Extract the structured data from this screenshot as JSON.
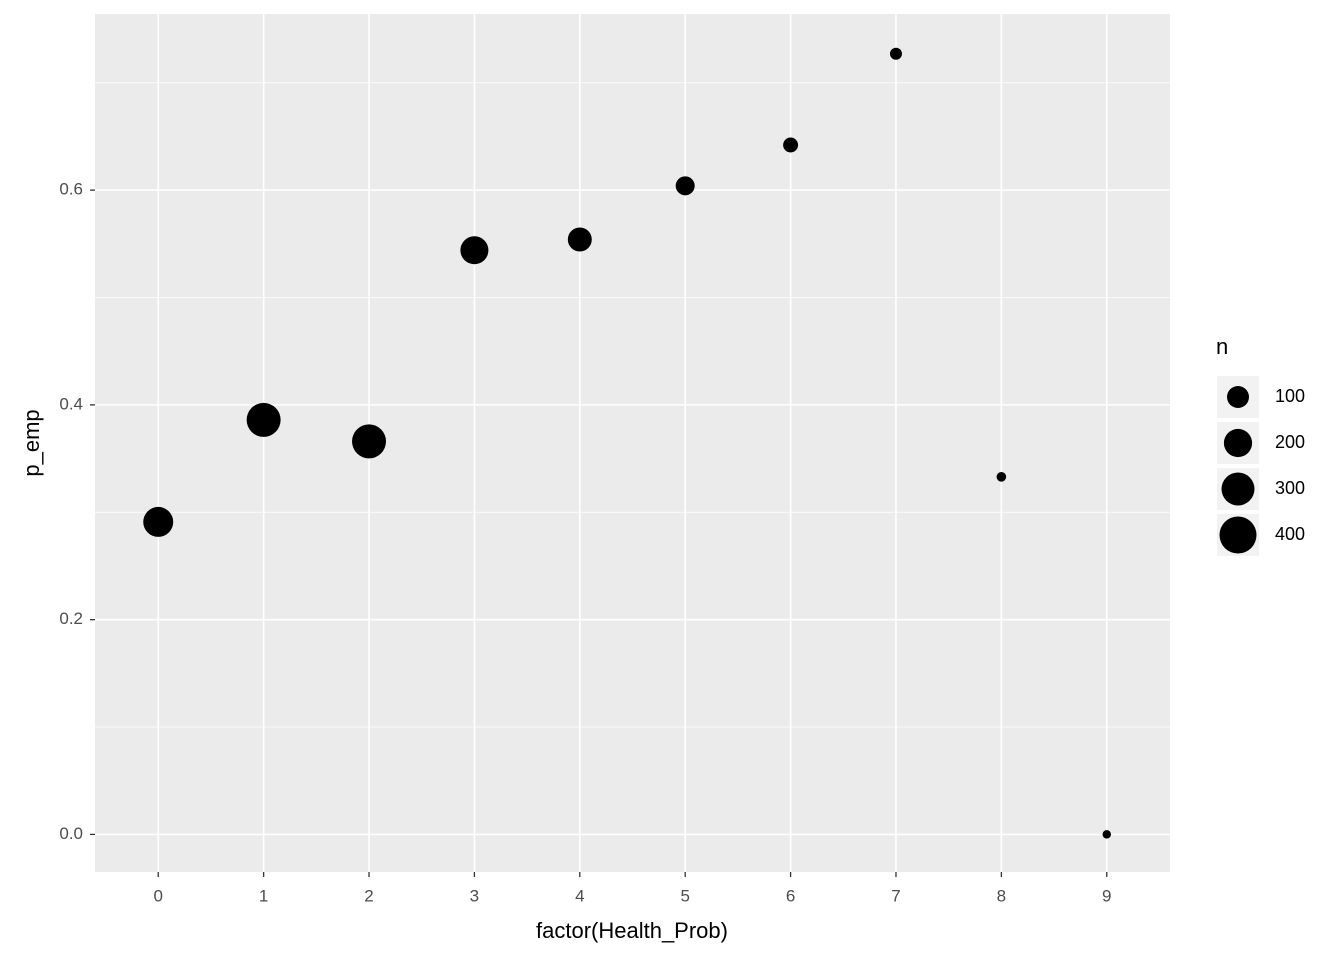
{
  "chart_data": {
    "type": "scatter",
    "x_label": "factor(Health_Prob)",
    "y_label": "p_emp",
    "categories": [
      "0",
      "1",
      "2",
      "3",
      "4",
      "5",
      "6",
      "7",
      "8",
      "9"
    ],
    "values": [
      0.291,
      0.386,
      0.366,
      0.544,
      0.554,
      0.604,
      0.642,
      0.727,
      0.333,
      0.0
    ],
    "sizes": [
      235,
      324,
      324,
      196,
      128,
      64,
      28,
      11,
      3,
      1
    ],
    "color": "#000000",
    "ylim": [
      -0.035,
      0.764
    ],
    "yticks": [
      {
        "value": 0.0,
        "label": "0.0"
      },
      {
        "value": 0.2,
        "label": "0.2"
      },
      {
        "value": 0.4,
        "label": "0.4"
      },
      {
        "value": 0.6,
        "label": "0.6"
      }
    ],
    "yminor": [
      0.1,
      0.3,
      0.5,
      0.7
    ],
    "grid": true,
    "size_legend": {
      "title": "n",
      "breaks": [
        100,
        200,
        300,
        400
      ]
    }
  }
}
